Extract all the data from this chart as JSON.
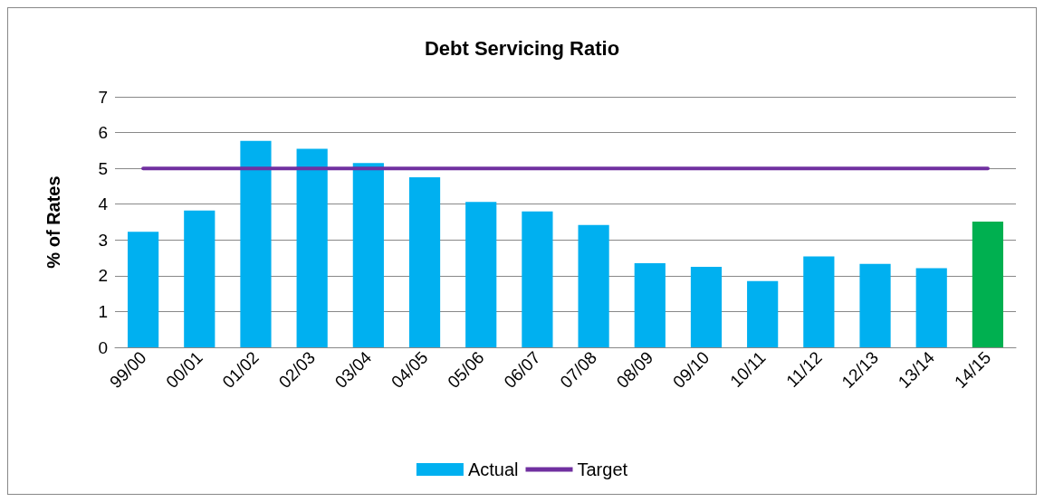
{
  "chart_data": {
    "type": "bar",
    "title": "Debt Servicing Ratio",
    "ylabel": "% of Rates",
    "categories": [
      "99/00",
      "00/01",
      "01/02",
      "02/03",
      "03/04",
      "04/05",
      "05/06",
      "06/07",
      "07/08",
      "08/09",
      "09/10",
      "10/11",
      "11/12",
      "12/13",
      "13/14",
      "14/15"
    ],
    "series": [
      {
        "name": "Actual",
        "color": "#00b0f0",
        "colors": [
          "#00b0f0",
          "#00b0f0",
          "#00b0f0",
          "#00b0f0",
          "#00b0f0",
          "#00b0f0",
          "#00b0f0",
          "#00b0f0",
          "#00b0f0",
          "#00b0f0",
          "#00b0f0",
          "#00b0f0",
          "#00b0f0",
          "#00b0f0",
          "#00b0f0",
          "#00b050"
        ],
        "values": [
          3.23,
          3.82,
          5.77,
          5.55,
          5.15,
          4.75,
          4.06,
          3.8,
          3.42,
          2.35,
          2.25,
          1.85,
          2.54,
          2.33,
          2.21,
          3.51
        ]
      },
      {
        "name": "Target",
        "type": "line",
        "color": "#7030a0",
        "values": [
          5,
          5,
          5,
          5,
          5,
          5,
          5,
          5,
          5,
          5,
          5,
          5,
          5,
          5,
          5,
          5
        ]
      }
    ],
    "ylim": [
      0,
      7
    ],
    "yticks": [
      0,
      1,
      2,
      3,
      4,
      5,
      6,
      7
    ],
    "grid": "y",
    "legend": "bottom",
    "marker": "none"
  }
}
